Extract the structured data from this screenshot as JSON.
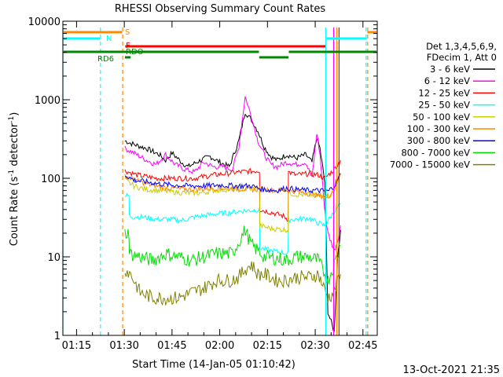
{
  "chart_data": {
    "type": "line",
    "title": "RHESSI Observing Summary Count Rates",
    "xlabel": "Start Time (14-Jan-05 01:10:42)",
    "ylabel_main": "Count Rate (s",
    "ylabel_exp1": "-1",
    "ylabel_mid": " detector",
    "ylabel_exp2": "-1",
    "ylabel_end": ")",
    "yscale": "log",
    "ylim": [
      1,
      10000
    ],
    "xlim_minutes": [
      70.7,
      169.5
    ],
    "x_ticks": [
      {
        "label": "01:15",
        "min": 75
      },
      {
        "label": "01:30",
        "min": 90
      },
      {
        "label": "01:45",
        "min": 105
      },
      {
        "label": "02:00",
        "min": 120
      },
      {
        "label": "02:15",
        "min": 135
      },
      {
        "label": "02:30",
        "min": 150
      },
      {
        "label": "02:45",
        "min": 165
      }
    ],
    "y_ticks": [
      {
        "label": "1",
        "value": 1
      },
      {
        "label": "10",
        "value": 10
      },
      {
        "label": "100",
        "value": 100
      },
      {
        "label": "1000",
        "value": 1000
      },
      {
        "label": "10000",
        "value": 10000
      }
    ],
    "legend_header": [
      "Det 1,3,4,5,6,9,",
      "FDecim 1, Att 0"
    ],
    "series": [
      {
        "name": "3 - 6 keV",
        "color": "#000000",
        "values": [
          [
            90.2,
            300
          ],
          [
            93,
            270
          ],
          [
            97,
            240
          ],
          [
            101,
            200
          ],
          [
            103,
            170
          ],
          [
            105,
            210
          ],
          [
            108,
            160
          ],
          [
            110,
            140
          ],
          [
            114,
            170
          ],
          [
            117,
            190
          ],
          [
            120,
            160
          ],
          [
            123,
            140
          ],
          [
            126,
            300
          ],
          [
            128,
            700
          ],
          [
            130,
            550
          ],
          [
            132,
            400
          ],
          [
            134,
            250
          ],
          [
            136,
            190
          ],
          [
            138,
            170
          ],
          [
            141,
            200
          ],
          [
            144,
            180
          ],
          [
            147,
            200
          ],
          [
            149,
            160
          ],
          [
            150.5,
            330
          ],
          [
            151.5,
            240
          ],
          [
            153,
            90
          ],
          [
            154,
            2
          ],
          [
            156,
            1.1
          ],
          [
            157,
            10
          ],
          [
            158,
            22
          ]
        ]
      },
      {
        "name": "6 - 12 keV",
        "color": "#ff00ff",
        "values": [
          [
            90.2,
            240
          ],
          [
            93,
            210
          ],
          [
            97,
            170
          ],
          [
            100,
            150
          ],
          [
            103,
            200
          ],
          [
            106,
            150
          ],
          [
            109,
            130
          ],
          [
            112,
            120
          ],
          [
            115,
            160
          ],
          [
            118,
            140
          ],
          [
            121,
            140
          ],
          [
            124,
            130
          ],
          [
            126,
            250
          ],
          [
            128,
            1100
          ],
          [
            130,
            600
          ],
          [
            132,
            300
          ],
          [
            134,
            200
          ],
          [
            136,
            150
          ],
          [
            138,
            140
          ],
          [
            141,
            160
          ],
          [
            144,
            150
          ],
          [
            147,
            160
          ],
          [
            149,
            100
          ],
          [
            150.5,
            380
          ],
          [
            151.5,
            200
          ],
          [
            153,
            40
          ],
          [
            154,
            20
          ],
          [
            156,
            12
          ],
          [
            157,
            16
          ],
          [
            158,
            25
          ]
        ]
      },
      {
        "name": "12 - 25 keV",
        "color": "#ff0000",
        "values": [
          [
            90.2,
            125
          ],
          [
            94,
            110
          ],
          [
            100,
            100
          ],
          [
            106,
            100
          ],
          [
            112,
            100
          ],
          [
            118,
            110
          ],
          [
            122,
            115
          ],
          [
            126,
            120
          ],
          [
            132.5,
            125
          ],
          [
            132.6,
            40
          ],
          [
            136,
            37
          ],
          [
            140,
            33
          ],
          [
            141.5,
            30
          ],
          [
            141.6,
            120
          ],
          [
            144,
            110
          ],
          [
            148,
            115
          ],
          [
            151,
            110
          ],
          [
            153,
            100
          ],
          [
            156,
            130
          ],
          [
            158,
            170
          ]
        ]
      },
      {
        "name": "25 - 50 keV",
        "color": "#00ffff",
        "values": [
          [
            90.2,
            60
          ],
          [
            91.5,
            60
          ],
          [
            91.6,
            33
          ],
          [
            96,
            32
          ],
          [
            100,
            30
          ],
          [
            104,
            30
          ],
          [
            108,
            29
          ],
          [
            112,
            32
          ],
          [
            118,
            35
          ],
          [
            122,
            36
          ],
          [
            126,
            38
          ],
          [
            132.5,
            40
          ],
          [
            132.6,
            13
          ],
          [
            136,
            12
          ],
          [
            141.5,
            11
          ],
          [
            141.6,
            30
          ],
          [
            144,
            30
          ],
          [
            148,
            31
          ],
          [
            151,
            27
          ],
          [
            153,
            25
          ],
          [
            156,
            38
          ],
          [
            158,
            48
          ]
        ]
      },
      {
        "name": "50 - 100 keV",
        "color": "#cccc00",
        "values": [
          [
            90.2,
            95
          ],
          [
            93,
            80
          ],
          [
            97,
            72
          ],
          [
            101,
            70
          ],
          [
            105,
            67
          ],
          [
            110,
            65
          ],
          [
            114,
            65
          ],
          [
            118,
            70
          ],
          [
            122,
            72
          ],
          [
            126,
            72
          ],
          [
            132.5,
            75
          ],
          [
            132.6,
            25
          ],
          [
            136,
            23
          ],
          [
            141.5,
            22
          ],
          [
            141.6,
            65
          ],
          [
            144,
            62
          ],
          [
            148,
            62
          ],
          [
            151,
            60
          ],
          [
            153,
            60
          ],
          [
            155,
            62
          ],
          [
            156,
            75
          ],
          [
            158,
            110
          ]
        ]
      },
      {
        "name": "100 - 300 keV",
        "color": "#ff8800",
        "values": [
          [
            90.2,
            110
          ],
          [
            93,
            95
          ],
          [
            97,
            85
          ],
          [
            100,
            80
          ],
          [
            104,
            75
          ],
          [
            108,
            73
          ],
          [
            112,
            72
          ],
          [
            116,
            74
          ],
          [
            120,
            75
          ],
          [
            124,
            74
          ],
          [
            128,
            73
          ],
          [
            132,
            72
          ],
          [
            135,
            72
          ],
          [
            138,
            70
          ],
          [
            141,
            70
          ],
          [
            144,
            68
          ],
          [
            148,
            64
          ],
          [
            151,
            60
          ],
          [
            154,
            58
          ],
          [
            156,
            72
          ],
          [
            158,
            115
          ]
        ]
      },
      {
        "name": "300 - 800 keV",
        "color": "#0000ff",
        "values": [
          [
            90.2,
            110
          ],
          [
            93,
            95
          ],
          [
            97,
            90
          ],
          [
            101,
            85
          ],
          [
            105,
            82
          ],
          [
            110,
            80
          ],
          [
            115,
            80
          ],
          [
            120,
            82
          ],
          [
            125,
            80
          ],
          [
            130,
            80
          ],
          [
            132,
            75
          ],
          [
            134,
            72
          ],
          [
            138,
            70
          ],
          [
            141,
            75
          ],
          [
            144,
            72
          ],
          [
            148,
            70
          ],
          [
            151,
            70
          ],
          [
            154,
            68
          ],
          [
            156,
            80
          ],
          [
            158,
            115
          ]
        ]
      },
      {
        "name": "800 - 7000 keV",
        "color": "#00dd00",
        "values": [
          [
            90.2,
            20
          ],
          [
            91.5,
            20
          ],
          [
            91.6,
            11
          ],
          [
            95,
            10
          ],
          [
            99,
            9
          ],
          [
            103,
            11
          ],
          [
            107,
            10
          ],
          [
            111,
            9
          ],
          [
            115,
            10
          ],
          [
            119,
            11
          ],
          [
            124,
            11
          ],
          [
            128,
            22
          ],
          [
            130,
            14
          ],
          [
            132,
            12
          ],
          [
            134,
            10
          ],
          [
            138,
            9.5
          ],
          [
            141,
            9
          ],
          [
            144,
            10
          ],
          [
            148,
            10
          ],
          [
            151,
            9
          ],
          [
            154,
            5
          ],
          [
            156,
            8
          ],
          [
            158,
            14
          ]
        ]
      },
      {
        "name": "7000 - 15000 keV",
        "color": "#808000",
        "values": [
          [
            90.2,
            7
          ],
          [
            92,
            6
          ],
          [
            95,
            3.5
          ],
          [
            99,
            3
          ],
          [
            103,
            3
          ],
          [
            107,
            3
          ],
          [
            111,
            3.5
          ],
          [
            115,
            4
          ],
          [
            119,
            5
          ],
          [
            123,
            5
          ],
          [
            126,
            5.5
          ],
          [
            128,
            7
          ],
          [
            130,
            8
          ],
          [
            132,
            6
          ],
          [
            134,
            6
          ],
          [
            138,
            5
          ],
          [
            141,
            5
          ],
          [
            144,
            5.5
          ],
          [
            148,
            5.5
          ],
          [
            151,
            6
          ],
          [
            154,
            3
          ],
          [
            156,
            3.5
          ],
          [
            158,
            6
          ]
        ]
      }
    ],
    "state_bars": [
      {
        "label": "S",
        "color": "#ff8800"
      },
      {
        "label": "N",
        "color": "#00ffff"
      },
      {
        "label": "F",
        "color": "#ff0000"
      },
      {
        "label": "RD6",
        "color": "#008800"
      },
      {
        "label": "RDO",
        "color": "#008800"
      }
    ],
    "vlines_min": [
      {
        "min": 70.7,
        "color": "#00ffff",
        "dash": "none"
      },
      {
        "min": 82.5,
        "color": "#00ffff",
        "dash": "dash"
      },
      {
        "min": 89.5,
        "color": "#ff8800",
        "dash": "dash"
      },
      {
        "min": 153.3,
        "color": "#00ffff",
        "dash": "none"
      },
      {
        "min": 155.8,
        "color": "#ff00ff",
        "dash": "none"
      },
      {
        "min": 156.8,
        "color": "#ff8800",
        "dash": "none"
      },
      {
        "min": 157.5,
        "color": "#ff0000",
        "dash": "none"
      },
      {
        "min": 166.0,
        "color": "#00ffff",
        "dash": "dash"
      },
      {
        "min": 166.5,
        "color": "#ff8800",
        "dash": "dash"
      }
    ],
    "footer_date": "13-Oct-2021 21:35"
  }
}
